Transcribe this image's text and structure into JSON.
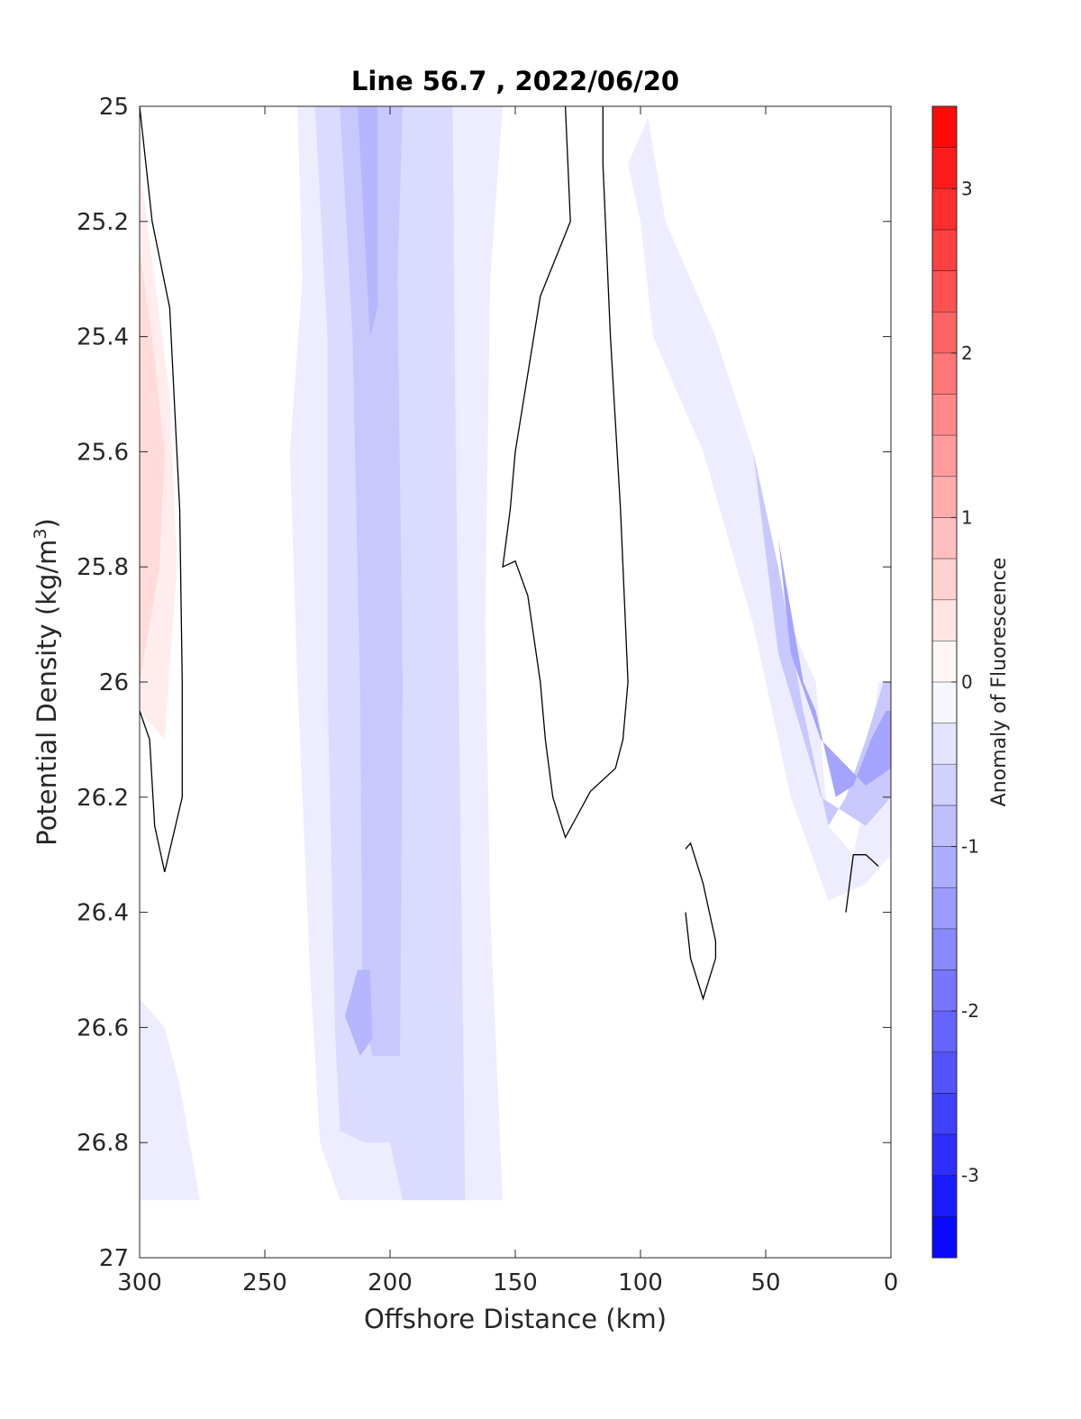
{
  "chart_data": {
    "type": "heatmap",
    "title": "Line 56.7 , 2022/06/20",
    "xlabel": "Offshore Distance (km)",
    "ylabel_main": "Potential Density (kg/m",
    "ylabel_sup": "3",
    "ylabel_close": ")",
    "xlim": [
      300,
      0
    ],
    "ylim": [
      25,
      27
    ],
    "x_reversed": true,
    "y_reversed": true,
    "grid": false,
    "xticks": [
      300,
      250,
      200,
      150,
      100,
      50,
      0
    ],
    "xtick_labels": [
      "300",
      "250",
      "200",
      "150",
      "100",
      "50",
      "0"
    ],
    "yticks": [
      25,
      25.2,
      25.4,
      25.6,
      25.8,
      26,
      26.2,
      26.4,
      26.6,
      26.8,
      27
    ],
    "ytick_labels": [
      "25",
      "25.2",
      "25.4",
      "25.6",
      "25.8",
      "26",
      "26.2",
      "26.4",
      "26.6",
      "26.8",
      "27"
    ],
    "colorbar": {
      "label": "Anomaly of Fluorescence",
      "range": [
        -3.5,
        3.5
      ],
      "step": 0.25,
      "ticks": [
        -3,
        -2,
        -1,
        0,
        1,
        2,
        3
      ],
      "tick_labels": [
        "-3",
        "-2",
        "-1",
        "0",
        "1",
        "2",
        "3"
      ],
      "color_min": "#0000ff",
      "color_zero": "#ffffff",
      "color_max": "#ff0000"
    },
    "contour_line_color": "#000000",
    "regions": [
      {
        "name": "offshore-wide-negative-band",
        "level": -0.25,
        "points": [
          [
            281,
            25
          ],
          [
            237,
            25
          ],
          [
            235,
            25.3
          ],
          [
            240,
            25.6
          ],
          [
            237,
            26
          ],
          [
            232,
            26.5
          ],
          [
            228,
            26.8
          ],
          [
            220,
            26.9
          ],
          [
            155,
            26.9
          ],
          [
            160,
            26.4
          ],
          [
            162,
            25.9
          ],
          [
            160,
            25.3
          ],
          [
            155,
            25
          ]
        ]
      },
      {
        "name": "offshore-negative-band-core",
        "level": -0.5,
        "points": [
          [
            230,
            25
          ],
          [
            225,
            25.4
          ],
          [
            225,
            26
          ],
          [
            222,
            26.6
          ],
          [
            220,
            26.78
          ],
          [
            210,
            26.8
          ],
          [
            200,
            26.8
          ],
          [
            195,
            26.9
          ],
          [
            170,
            26.9
          ],
          [
            172,
            26.2
          ],
          [
            174,
            25.5
          ],
          [
            175,
            25
          ]
        ]
      },
      {
        "name": "offshore-negative-band-inner",
        "level": -0.75,
        "points": [
          [
            220,
            25
          ],
          [
            215,
            25.4
          ],
          [
            212,
            26
          ],
          [
            211,
            26.55
          ],
          [
            207,
            26.65
          ],
          [
            196,
            26.65
          ],
          [
            195,
            26
          ],
          [
            197,
            25.3
          ],
          [
            195,
            25
          ]
        ]
      },
      {
        "name": "offshore-negative-band-innermost",
        "level": -1.0,
        "points": [
          [
            213,
            25
          ],
          [
            208,
            25.4
          ],
          [
            205,
            25.35
          ],
          [
            205,
            25
          ]
        ]
      },
      {
        "name": "offshore-negative-band-deep-core",
        "level": -1.0,
        "points": [
          [
            213,
            26.5
          ],
          [
            218,
            26.58
          ],
          [
            212,
            26.65
          ],
          [
            207,
            26.62
          ],
          [
            208,
            26.5
          ]
        ]
      },
      {
        "name": "western-edge-negative",
        "level": -0.25,
        "points": [
          [
            300,
            26.55
          ],
          [
            290,
            26.6
          ],
          [
            284,
            26.7
          ],
          [
            276,
            26.9
          ],
          [
            300,
            26.9
          ]
        ]
      },
      {
        "name": "western-positive-anomaly",
        "level": 0.25,
        "points": [
          [
            300,
            25.1
          ],
          [
            288,
            25.5
          ],
          [
            285,
            25.8
          ],
          [
            290,
            26.1
          ],
          [
            300,
            26.05
          ]
        ]
      },
      {
        "name": "western-positive-core",
        "level": 0.5,
        "points": [
          [
            300,
            25.25
          ],
          [
            295,
            25.4
          ],
          [
            290,
            25.6
          ],
          [
            292,
            25.8
          ],
          [
            300,
            26.0
          ]
        ]
      },
      {
        "name": "coastal-negative-tongue",
        "level": -0.25,
        "points": [
          [
            100,
            25.2
          ],
          [
            105,
            25.1
          ],
          [
            97,
            25.02
          ],
          [
            90,
            25.2
          ],
          [
            70,
            25.4
          ],
          [
            55,
            25.6
          ],
          [
            40,
            25.9
          ],
          [
            30,
            26.0
          ],
          [
            25,
            26.25
          ],
          [
            15,
            26.3
          ],
          [
            10,
            26.2
          ],
          [
            5,
            26.0
          ],
          [
            0,
            26.0
          ],
          [
            0,
            26.3
          ],
          [
            10,
            26.35
          ],
          [
            25,
            26.38
          ],
          [
            40,
            26.2
          ],
          [
            55,
            25.9
          ],
          [
            75,
            25.6
          ],
          [
            95,
            25.4
          ]
        ]
      },
      {
        "name": "coastal-negative-core",
        "level": -0.75,
        "points": [
          [
            55,
            25.6
          ],
          [
            45,
            25.8
          ],
          [
            35,
            26.05
          ],
          [
            25,
            26.25
          ],
          [
            18,
            26.2
          ],
          [
            10,
            26.1
          ],
          [
            3,
            26.0
          ],
          [
            0,
            26.0
          ],
          [
            0,
            26.2
          ],
          [
            10,
            26.25
          ],
          [
            28,
            26.2
          ],
          [
            45,
            25.95
          ]
        ]
      },
      {
        "name": "coastal-negative-inner",
        "level": -1.25,
        "points": [
          [
            45,
            25.75
          ],
          [
            35,
            26.0
          ],
          [
            30,
            26.05
          ],
          [
            22,
            26.2
          ],
          [
            15,
            26.18
          ],
          [
            8,
            26.1
          ],
          [
            2,
            26.05
          ],
          [
            0,
            26.05
          ],
          [
            0,
            26.15
          ],
          [
            10,
            26.18
          ],
          [
            28,
            26.1
          ],
          [
            40,
            25.95
          ]
        ]
      }
    ],
    "zero_contours": [
      {
        "name": "western-zero-contour",
        "points": [
          [
            300,
            25.0
          ],
          [
            295,
            25.2
          ],
          [
            288,
            25.35
          ],
          [
            284,
            25.7
          ],
          [
            283,
            26.0
          ],
          [
            283,
            26.2
          ],
          [
            290,
            26.33
          ],
          [
            294,
            26.25
          ],
          [
            296,
            26.1
          ],
          [
            300,
            26.05
          ]
        ]
      },
      {
        "name": "mid-zero-contour",
        "points": [
          [
            130,
            25.0
          ],
          [
            128,
            25.2
          ],
          [
            140,
            25.33
          ],
          [
            150,
            25.6
          ],
          [
            152,
            25.7
          ],
          [
            155,
            25.8
          ],
          [
            150,
            25.79
          ],
          [
            145,
            25.85
          ],
          [
            140,
            26.0
          ],
          [
            138,
            26.1
          ],
          [
            135,
            26.2
          ],
          [
            130,
            26.27
          ],
          [
            125,
            26.23
          ],
          [
            120,
            26.19
          ],
          [
            110,
            26.15
          ],
          [
            107,
            26.1
          ],
          [
            105,
            26.0
          ],
          [
            108,
            25.7
          ],
          [
            112,
            25.4
          ],
          [
            115,
            25.1
          ],
          [
            115,
            25.0
          ]
        ]
      },
      {
        "name": "deep-closed-zero-contour",
        "points": [
          [
            82,
            26.29
          ],
          [
            80,
            26.28
          ],
          [
            75,
            26.35
          ],
          [
            70,
            26.45
          ],
          [
            70,
            26.48
          ],
          [
            75,
            26.55
          ],
          [
            80,
            26.48
          ],
          [
            82,
            26.4
          ]
        ]
      },
      {
        "name": "nearshore-zero-contour",
        "points": [
          [
            18,
            26.4
          ],
          [
            15,
            26.3
          ],
          [
            10,
            26.3
          ],
          [
            5,
            26.32
          ]
        ]
      }
    ]
  }
}
